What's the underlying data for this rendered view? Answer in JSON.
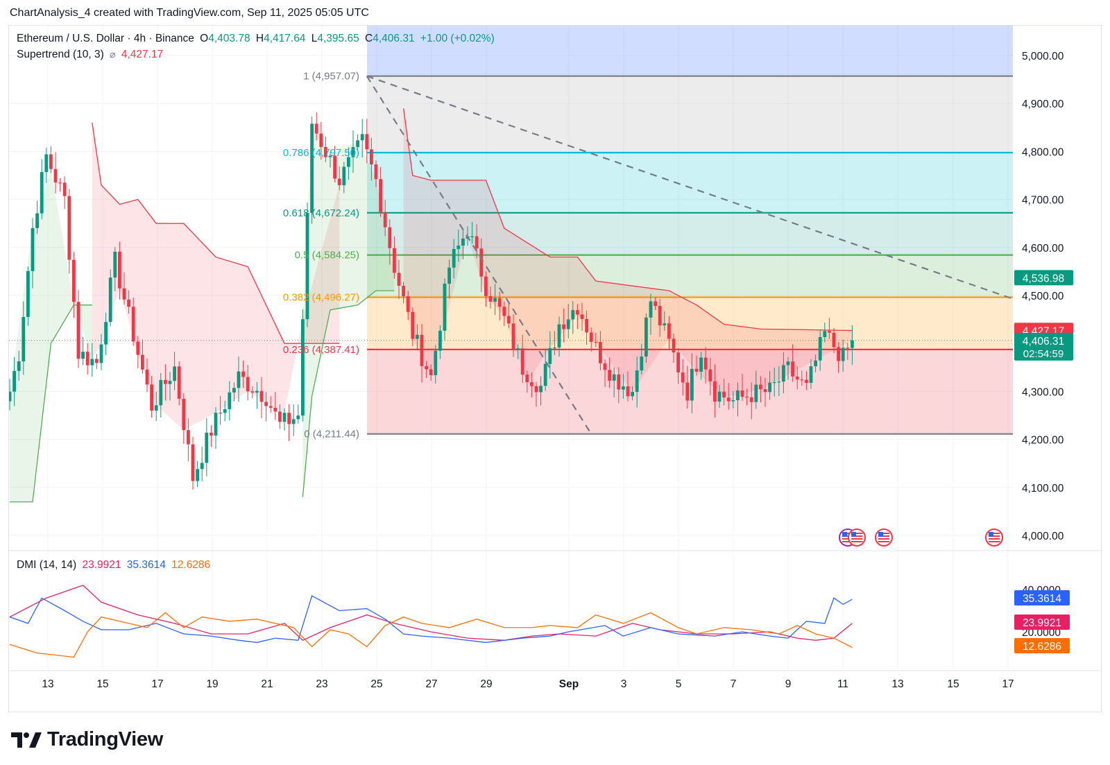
{
  "header": {
    "credit": "ChartAnalysis_4 created with TradingView.com, Sep 11, 2025 05:05 UTC"
  },
  "legend": {
    "symbol": "Ethereum / U.S. Dollar · 4h · Binance",
    "o_label": "O",
    "o_value": "4,403.78",
    "h_label": "H",
    "h_value": "4,417.64",
    "l_label": "L",
    "l_value": "4,395.65",
    "c_label": "C",
    "c_value": "4,406.31",
    "change": "+1.00 (+0.02%)",
    "indicator": "Supertrend (10, 3)",
    "indicator_symbol": "⌀",
    "indicator_value": "4,427.17"
  },
  "dmi_legend": {
    "name": "DMI (14, 14)",
    "v1": "23.9921",
    "v2": "35.3614",
    "v3": "12.6286"
  },
  "brand": {
    "name": "TradingView"
  },
  "colors": {
    "up": "#089981",
    "down": "#f23645",
    "supertrend_up": "#4caf50",
    "supertrend_down": "#f23645",
    "fib_1": "#787b86",
    "fib_0786": "#00bcd4",
    "fib_0618": "#089981",
    "fib_05": "#4caf50",
    "fib_0382": "#ff9800",
    "fib_0236": "#f23645",
    "fib_0": "#787b86",
    "dmi_plus": "#2962ff",
    "dmi_minus": "#ff6d00",
    "adx": "#e91e63",
    "current_price_bg": "#089981",
    "event_flag": "us-flag-icon"
  },
  "chart_data": [
    {
      "type": "candlestick",
      "title": "Ethereum / U.S. Dollar · 4h · Binance",
      "x_ticks": [
        "13",
        "15",
        "17",
        "19",
        "21",
        "23",
        "25",
        "27",
        "29",
        "Sep",
        "3",
        "5",
        "7",
        "9",
        "11",
        "13",
        "15",
        "17"
      ],
      "y_ticks": [
        "5,000.00",
        "4,900.00",
        "4,800.00",
        "4,700.00",
        "4,600.00",
        "4,500.00",
        "4,400.00",
        "4,300.00",
        "4,200.00",
        "4,100.00",
        "4,000.00"
      ],
      "ylim": [
        3960,
        5075
      ],
      "grid": true,
      "price_tags": [
        {
          "value": 4536.98,
          "label": "4,536.98"
        },
        {
          "value": 4427.17,
          "label": "4,427.17"
        },
        {
          "value": 4406.31,
          "label": "4,406.31"
        }
      ],
      "countdown": "02:54:59",
      "fib_levels": [
        {
          "ratio": "1",
          "price": 4957.07,
          "label": "1 (4,957.07)"
        },
        {
          "ratio": "0.786",
          "price": 4797.5,
          "label": "0.786 (4,797.50)"
        },
        {
          "ratio": "0.618",
          "price": 4672.24,
          "label": "0.618 (4,672.24)"
        },
        {
          "ratio": "0.5",
          "price": 4584.25,
          "label": "0.5 (4,584.25)"
        },
        {
          "ratio": "0.382",
          "price": 4496.27,
          "label": "0.382 (4,496.27)"
        },
        {
          "ratio": "0.236",
          "price": 4387.41,
          "label": "0.236 (4,387.41)"
        },
        {
          "ratio": "0",
          "price": 4211.44,
          "label": "0 (4,211.44)"
        }
      ],
      "anchors": [
        [
          0,
          4300
        ],
        [
          2,
          4380
        ],
        [
          5,
          4640
        ],
        [
          8,
          4790
        ],
        [
          12,
          4700
        ],
        [
          15,
          4380
        ],
        [
          19,
          4360
        ],
        [
          23,
          4570
        ],
        [
          28,
          4380
        ],
        [
          31,
          4270
        ],
        [
          36,
          4350
        ],
        [
          40,
          4120
        ],
        [
          44,
          4220
        ],
        [
          50,
          4330
        ],
        [
          56,
          4290
        ],
        [
          59,
          4230
        ],
        [
          63,
          4250
        ],
        [
          66,
          4860
        ],
        [
          72,
          4740
        ],
        [
          77,
          4820
        ],
        [
          80,
          4740
        ],
        [
          84,
          4560
        ],
        [
          88,
          4420
        ],
        [
          92,
          4330
        ],
        [
          96,
          4560
        ],
        [
          100,
          4640
        ],
        [
          104,
          4520
        ],
        [
          108,
          4450
        ],
        [
          112,
          4350
        ],
        [
          116,
          4310
        ],
        [
          120,
          4440
        ],
        [
          124,
          4480
        ],
        [
          128,
          4390
        ],
        [
          132,
          4330
        ],
        [
          136,
          4300
        ],
        [
          140,
          4490
        ],
        [
          144,
          4400
        ],
        [
          148,
          4300
        ],
        [
          151,
          4390
        ],
        [
          154,
          4300
        ],
        [
          158,
          4280
        ],
        [
          162,
          4295
        ],
        [
          166,
          4300
        ],
        [
          170,
          4345
        ],
        [
          174,
          4305
        ],
        [
          178,
          4420
        ],
        [
          182,
          4370
        ],
        [
          184,
          4406.31
        ]
      ],
      "supertrend": [
        {
          "trend": "up",
          "points": [
            [
              0,
              4070
            ],
            [
              5,
              4070
            ],
            [
              9,
              4400
            ],
            [
              14,
              4480
            ],
            [
              18,
              4480
            ]
          ]
        },
        {
          "trend": "down",
          "points": [
            [
              18,
              4860
            ],
            [
              20,
              4730
            ],
            [
              24,
              4690
            ],
            [
              28,
              4700
            ],
            [
              32,
              4650
            ],
            [
              38,
              4650
            ],
            [
              45,
              4580
            ],
            [
              52,
              4560
            ],
            [
              60,
              4400
            ],
            [
              64,
              4400
            ],
            [
              72,
              4400
            ]
          ]
        },
        {
          "trend": "up",
          "points": [
            [
              64,
              4080
            ],
            [
              66,
              4290
            ],
            [
              70,
              4470
            ],
            [
              76,
              4480
            ],
            [
              80,
              4510
            ],
            [
              84,
              4510
            ]
          ]
        },
        {
          "trend": "down",
          "points": [
            [
              86,
              4890
            ],
            [
              88,
              4750
            ],
            [
              92,
              4740
            ],
            [
              100,
              4740
            ],
            [
              104,
              4740
            ],
            [
              108,
              4640
            ],
            [
              113,
              4610
            ],
            [
              118,
              4580
            ],
            [
              124,
              4580
            ],
            [
              128,
              4530
            ],
            [
              136,
              4520
            ],
            [
              144,
              4510
            ],
            [
              150,
              4480
            ],
            [
              156,
              4440
            ],
            [
              164,
              4430
            ],
            [
              184,
              4427
            ]
          ]
        }
      ],
      "trendlines": [
        {
          "style": "dashed",
          "from": [
            78,
            4957.07
          ],
          "to": [
            220,
            4490
          ]
        },
        {
          "style": "dashed",
          "from": [
            78,
            4957.07
          ],
          "to": [
            127,
            4211.44
          ]
        }
      ]
    },
    {
      "type": "line",
      "title": "DMI (14, 14)",
      "y_ticks": [
        "40.0000",
        "20.0000"
      ],
      "ylim": [
        2,
        51
      ],
      "series": [
        {
          "key": "adx",
          "values_label": "23.9921",
          "points": [
            [
              0,
              27
            ],
            [
              8,
              36
            ],
            [
              16,
              42
            ],
            [
              20,
              34
            ],
            [
              28,
              28
            ],
            [
              36,
              24
            ],
            [
              44,
              19
            ],
            [
              52,
              19
            ],
            [
              60,
              24
            ],
            [
              64,
              16
            ],
            [
              70,
              22
            ],
            [
              78,
              28
            ],
            [
              84,
              24
            ],
            [
              92,
              20
            ],
            [
              100,
              17
            ],
            [
              108,
              16
            ],
            [
              114,
              18
            ],
            [
              120,
              19
            ],
            [
              128,
              18
            ],
            [
              132,
              21
            ],
            [
              136,
              24
            ],
            [
              142,
              21
            ],
            [
              150,
              19
            ],
            [
              158,
              19
            ],
            [
              166,
              20
            ],
            [
              172,
              17
            ],
            [
              176,
              16
            ],
            [
              180,
              17
            ],
            [
              184,
              24
            ]
          ]
        },
        {
          "key": "dmi_plus",
          "values_label": "35.3614",
          "points": [
            [
              0,
              27
            ],
            [
              4,
              24
            ],
            [
              7,
              36
            ],
            [
              12,
              30
            ],
            [
              16,
              25
            ],
            [
              20,
              21
            ],
            [
              26,
              21
            ],
            [
              32,
              24
            ],
            [
              38,
              19
            ],
            [
              44,
              18
            ],
            [
              50,
              16
            ],
            [
              54,
              15
            ],
            [
              58,
              17
            ],
            [
              63,
              16
            ],
            [
              66,
              37
            ],
            [
              72,
              30
            ],
            [
              78,
              31
            ],
            [
              82,
              26
            ],
            [
              86,
              19
            ],
            [
              90,
              18
            ],
            [
              96,
              17
            ],
            [
              104,
              15
            ],
            [
              112,
              17
            ],
            [
              118,
              18
            ],
            [
              122,
              20
            ],
            [
              130,
              23
            ],
            [
              134,
              18
            ],
            [
              140,
              22
            ],
            [
              146,
              19
            ],
            [
              154,
              18
            ],
            [
              160,
              20
            ],
            [
              166,
              18
            ],
            [
              170,
              17
            ],
            [
              174,
              25
            ],
            [
              178,
              24
            ],
            [
              180,
              36
            ],
            [
              182,
              33
            ],
            [
              184,
              35.36
            ]
          ]
        },
        {
          "key": "dmi_minus",
          "values_label": "12.6286",
          "points": [
            [
              0,
              14
            ],
            [
              6,
              10
            ],
            [
              10,
              9
            ],
            [
              14,
              8
            ],
            [
              17,
              20
            ],
            [
              20,
              27
            ],
            [
              26,
              24
            ],
            [
              30,
              22
            ],
            [
              34,
              29
            ],
            [
              38,
              22
            ],
            [
              42,
              27
            ],
            [
              48,
              25
            ],
            [
              54,
              26
            ],
            [
              58,
              24
            ],
            [
              62,
              22
            ],
            [
              66,
              13
            ],
            [
              70,
              21
            ],
            [
              74,
              19
            ],
            [
              78,
              13
            ],
            [
              82,
              23
            ],
            [
              86,
              27
            ],
            [
              90,
              24
            ],
            [
              96,
              22
            ],
            [
              102,
              26
            ],
            [
              108,
              22
            ],
            [
              114,
              22
            ],
            [
              118,
              23
            ],
            [
              124,
              22
            ],
            [
              128,
              28
            ],
            [
              134,
              24
            ],
            [
              140,
              29
            ],
            [
              146,
              22
            ],
            [
              150,
              19
            ],
            [
              156,
              22
            ],
            [
              162,
              21
            ],
            [
              168,
              19
            ],
            [
              172,
              23
            ],
            [
              176,
              19
            ],
            [
              180,
              17
            ],
            [
              184,
              12.63
            ]
          ]
        }
      ]
    }
  ]
}
